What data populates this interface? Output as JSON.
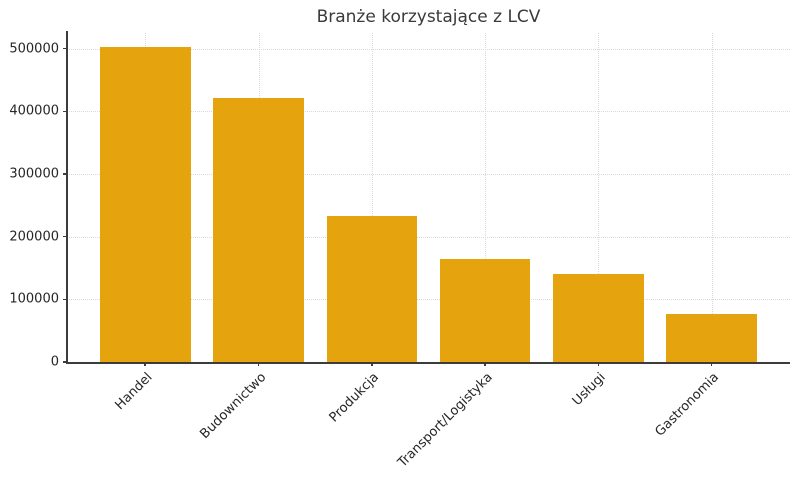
{
  "chart_data": {
    "type": "bar",
    "title": "Branże korzystające z LCV",
    "categories": [
      "Handel",
      "Budownictwo",
      "Produkcja",
      "Transport/Logistyka",
      "Usługi",
      "Gastronomia"
    ],
    "values": [
      503000,
      421000,
      233000,
      164000,
      141000,
      76000
    ],
    "xlabel": "",
    "ylabel": "",
    "ylim": [
      0,
      525000
    ],
    "yticks": [
      0,
      100000,
      200000,
      300000,
      400000,
      500000
    ],
    "ytick_labels": [
      "0",
      "100000",
      "200000",
      "300000",
      "400000",
      "500000"
    ],
    "grid": "dotted-both-axes",
    "legend": "none",
    "bar_color": "#E5A40D",
    "spine_color": "#3c3c3c",
    "gridline_color": "#d9d9d9",
    "text_color": "#262626",
    "xtick_rotation_deg": 45
  }
}
